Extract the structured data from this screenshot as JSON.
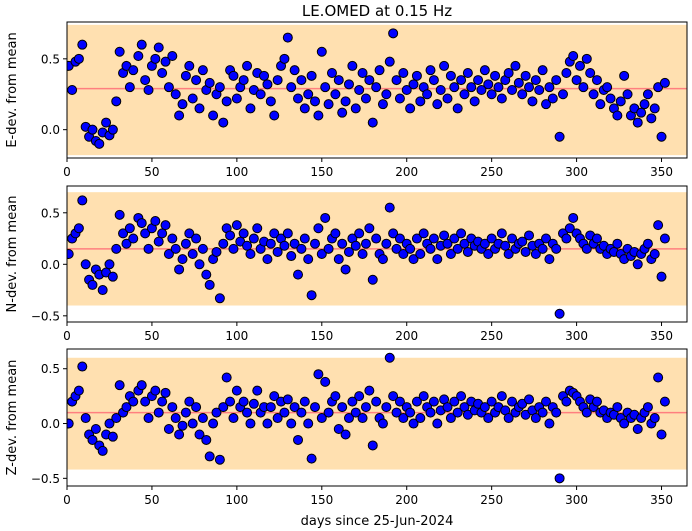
{
  "title": "LE.OMED at 0.15 Hz",
  "xlabel": "days since 25-Jun-2024",
  "colors": {
    "band": "#ffe0b0",
    "mean_line": "#ff7f7f",
    "marker_fill": "#0000ff",
    "marker_edge": "#000000"
  },
  "chart_data": [
    {
      "type": "scatter",
      "ylabel": "E-dev. from mean",
      "xlim": [
        0,
        365
      ],
      "ylim": [
        -0.2,
        0.76
      ],
      "xticks": [
        0,
        50,
        100,
        150,
        200,
        250,
        300,
        350
      ],
      "yticks": [
        0.0,
        0.5
      ],
      "ytick_labels": [
        "0.0",
        "0.5"
      ],
      "band": [
        -0.18,
        0.74
      ],
      "mean": 0.29,
      "x": [
        1,
        3,
        5,
        7,
        9,
        11,
        13,
        15,
        17,
        19,
        21,
        23,
        25,
        27,
        29,
        31,
        33,
        35,
        37,
        39,
        42,
        44,
        46,
        48,
        50,
        52,
        54,
        56,
        58,
        60,
        62,
        64,
        66,
        68,
        70,
        72,
        74,
        76,
        78,
        80,
        82,
        84,
        86,
        88,
        90,
        92,
        94,
        96,
        98,
        100,
        102,
        104,
        106,
        108,
        110,
        112,
        114,
        116,
        118,
        120,
        122,
        124,
        126,
        128,
        130,
        132,
        134,
        136,
        138,
        140,
        142,
        144,
        146,
        148,
        150,
        152,
        154,
        156,
        158,
        160,
        162,
        164,
        166,
        168,
        170,
        172,
        174,
        176,
        178,
        180,
        182,
        184,
        186,
        188,
        190,
        192,
        194,
        196,
        198,
        200,
        202,
        204,
        206,
        208,
        210,
        212,
        214,
        216,
        218,
        220,
        222,
        224,
        226,
        228,
        230,
        232,
        234,
        236,
        238,
        240,
        242,
        244,
        246,
        248,
        250,
        252,
        254,
        256,
        258,
        260,
        262,
        264,
        266,
        268,
        270,
        272,
        274,
        276,
        278,
        280,
        282,
        284,
        286,
        288,
        290,
        292,
        294,
        296,
        298,
        300,
        302,
        304,
        306,
        308,
        310,
        312,
        314,
        316,
        318,
        320,
        322,
        324,
        326,
        328,
        330,
        332,
        334,
        336,
        338,
        340,
        342,
        344,
        346,
        348,
        350,
        352
      ],
      "y": [
        0.45,
        0.28,
        0.48,
        0.5,
        0.6,
        0.02,
        -0.05,
        0.0,
        -0.08,
        -0.1,
        -0.02,
        0.05,
        -0.04,
        0.0,
        0.2,
        0.55,
        0.4,
        0.45,
        0.3,
        0.42,
        0.52,
        0.6,
        0.35,
        0.28,
        0.45,
        0.5,
        0.58,
        0.4,
        0.48,
        0.3,
        0.52,
        0.25,
        0.1,
        0.18,
        0.38,
        0.45,
        0.22,
        0.35,
        0.15,
        0.42,
        0.28,
        0.33,
        0.1,
        0.25,
        0.3,
        0.05,
        0.2,
        0.42,
        0.38,
        0.22,
        0.3,
        0.35,
        0.45,
        0.15,
        0.28,
        0.4,
        0.25,
        0.38,
        0.32,
        0.2,
        0.1,
        0.35,
        0.45,
        0.5,
        0.65,
        0.3,
        0.42,
        0.22,
        0.35,
        0.15,
        0.25,
        0.38,
        0.2,
        0.1,
        0.55,
        0.3,
        0.18,
        0.4,
        0.25,
        0.35,
        0.12,
        0.2,
        0.32,
        0.45,
        0.15,
        0.28,
        0.4,
        0.22,
        0.35,
        0.05,
        0.3,
        0.42,
        0.18,
        0.25,
        0.48,
        0.68,
        0.35,
        0.22,
        0.4,
        0.28,
        0.15,
        0.32,
        0.38,
        0.2,
        0.3,
        0.25,
        0.42,
        0.35,
        0.18,
        0.28,
        0.45,
        0.22,
        0.38,
        0.3,
        0.15,
        0.35,
        0.25,
        0.4,
        0.3,
        0.2,
        0.35,
        0.28,
        0.42,
        0.32,
        0.25,
        0.38,
        0.3,
        0.22,
        0.35,
        0.4,
        0.28,
        0.45,
        0.33,
        0.25,
        0.38,
        0.3,
        0.2,
        0.35,
        0.28,
        0.42,
        0.18,
        0.3,
        0.22,
        0.35,
        -0.05,
        0.25,
        0.4,
        0.48,
        0.52,
        0.35,
        0.45,
        0.3,
        0.5,
        0.4,
        0.25,
        0.35,
        0.18,
        0.28,
        0.3,
        0.22,
        0.15,
        0.1,
        0.2,
        0.38,
        0.25,
        0.1,
        0.15,
        0.05,
        0.12,
        0.18,
        0.25,
        0.08,
        0.15,
        0.3,
        -0.05,
        0.33
      ]
    },
    {
      "type": "scatter",
      "ylabel": "N-dev. from mean",
      "xlim": [
        0,
        365
      ],
      "ylim": [
        -0.56,
        0.76
      ],
      "xticks": [
        0,
        50,
        100,
        150,
        200,
        250,
        300,
        350
      ],
      "yticks": [
        -0.5,
        0.0,
        0.5
      ],
      "ytick_labels": [
        "−0.5",
        "0.0",
        "0.5"
      ],
      "band": [
        -0.4,
        0.7
      ],
      "mean": 0.15,
      "x": [
        1,
        3,
        5,
        7,
        9,
        11,
        13,
        15,
        17,
        19,
        21,
        23,
        25,
        27,
        29,
        31,
        33,
        35,
        37,
        39,
        42,
        44,
        46,
        48,
        50,
        52,
        54,
        56,
        58,
        60,
        62,
        64,
        66,
        68,
        70,
        72,
        74,
        76,
        78,
        80,
        82,
        84,
        86,
        88,
        90,
        92,
        94,
        96,
        98,
        100,
        102,
        104,
        106,
        108,
        110,
        112,
        114,
        116,
        118,
        120,
        122,
        124,
        126,
        128,
        130,
        132,
        134,
        136,
        138,
        140,
        142,
        144,
        146,
        148,
        150,
        152,
        154,
        156,
        158,
        160,
        162,
        164,
        166,
        168,
        170,
        172,
        174,
        176,
        178,
        180,
        182,
        184,
        186,
        188,
        190,
        192,
        194,
        196,
        198,
        200,
        202,
        204,
        206,
        208,
        210,
        212,
        214,
        216,
        218,
        220,
        222,
        224,
        226,
        228,
        230,
        232,
        234,
        236,
        238,
        240,
        242,
        244,
        246,
        248,
        250,
        252,
        254,
        256,
        258,
        260,
        262,
        264,
        266,
        268,
        270,
        272,
        274,
        276,
        278,
        280,
        282,
        284,
        286,
        288,
        290,
        292,
        294,
        296,
        298,
        300,
        302,
        304,
        306,
        308,
        310,
        312,
        314,
        316,
        318,
        320,
        322,
        324,
        326,
        328,
        330,
        332,
        334,
        336,
        338,
        340,
        342,
        344,
        346,
        348,
        350,
        352
      ],
      "y": [
        0.1,
        0.25,
        0.3,
        0.35,
        0.62,
        0.0,
        -0.15,
        -0.2,
        -0.05,
        -0.1,
        -0.25,
        -0.08,
        0.0,
        -0.12,
        0.15,
        0.48,
        0.3,
        0.2,
        0.35,
        0.25,
        0.45,
        0.4,
        0.3,
        0.15,
        0.35,
        0.42,
        0.22,
        0.3,
        0.38,
        0.1,
        0.25,
        0.15,
        -0.05,
        0.05,
        0.2,
        0.3,
        0.1,
        0.25,
        0.0,
        0.15,
        -0.1,
        -0.2,
        0.05,
        0.12,
        -0.33,
        0.2,
        0.35,
        0.28,
        0.15,
        0.38,
        0.22,
        0.3,
        0.18,
        0.1,
        0.25,
        0.35,
        0.15,
        0.22,
        0.05,
        0.2,
        0.3,
        0.12,
        0.25,
        0.18,
        0.3,
        0.08,
        0.2,
        -0.1,
        0.15,
        0.25,
        0.05,
        -0.3,
        0.2,
        0.35,
        0.1,
        0.45,
        0.15,
        0.25,
        0.3,
        0.05,
        0.2,
        -0.05,
        0.12,
        0.25,
        0.18,
        0.3,
        0.1,
        0.2,
        0.35,
        -0.15,
        0.25,
        0.1,
        0.05,
        0.2,
        0.55,
        0.3,
        0.15,
        0.25,
        0.1,
        0.2,
        0.15,
        0.05,
        0.25,
        0.1,
        0.3,
        0.2,
        0.15,
        0.25,
        0.05,
        0.18,
        0.28,
        0.2,
        0.1,
        0.25,
        0.15,
        0.3,
        0.2,
        0.12,
        0.25,
        0.18,
        0.22,
        0.15,
        0.2,
        0.1,
        0.25,
        0.15,
        0.2,
        0.3,
        0.18,
        0.1,
        0.25,
        0.15,
        0.2,
        0.22,
        0.12,
        0.28,
        0.18,
        0.1,
        0.2,
        0.15,
        0.25,
        0.05,
        0.2,
        0.15,
        -0.48,
        0.3,
        0.25,
        0.35,
        0.45,
        0.3,
        0.25,
        0.2,
        0.15,
        0.28,
        0.2,
        0.25,
        0.15,
        0.18,
        0.1,
        0.15,
        0.12,
        0.2,
        0.1,
        0.05,
        0.15,
        0.08,
        0.12,
        0.0,
        0.1,
        0.15,
        0.2,
        0.05,
        0.1,
        0.38,
        -0.12,
        0.25
      ]
    },
    {
      "type": "scatter",
      "ylabel": "Z-dev. from mean",
      "xlim": [
        0,
        365
      ],
      "ylim": [
        -0.57,
        0.68
      ],
      "xticks": [
        0,
        50,
        100,
        150,
        200,
        250,
        300,
        350
      ],
      "yticks": [
        -0.5,
        0.0,
        0.5
      ],
      "ytick_labels": [
        "−0.5",
        "0.0",
        "0.5"
      ],
      "band": [
        -0.42,
        0.6
      ],
      "mean": 0.1,
      "x": [
        1,
        3,
        5,
        7,
        9,
        11,
        13,
        15,
        17,
        19,
        21,
        23,
        25,
        27,
        29,
        31,
        33,
        35,
        37,
        39,
        42,
        44,
        46,
        48,
        50,
        52,
        54,
        56,
        58,
        60,
        62,
        64,
        66,
        68,
        70,
        72,
        74,
        76,
        78,
        80,
        82,
        84,
        86,
        88,
        90,
        92,
        94,
        96,
        98,
        100,
        102,
        104,
        106,
        108,
        110,
        112,
        114,
        116,
        118,
        120,
        122,
        124,
        126,
        128,
        130,
        132,
        134,
        136,
        138,
        140,
        142,
        144,
        146,
        148,
        150,
        152,
        154,
        156,
        158,
        160,
        162,
        164,
        166,
        168,
        170,
        172,
        174,
        176,
        178,
        180,
        182,
        184,
        186,
        188,
        190,
        192,
        194,
        196,
        198,
        200,
        202,
        204,
        206,
        208,
        210,
        212,
        214,
        216,
        218,
        220,
        222,
        224,
        226,
        228,
        230,
        232,
        234,
        236,
        238,
        240,
        242,
        244,
        246,
        248,
        250,
        252,
        254,
        256,
        258,
        260,
        262,
        264,
        266,
        268,
        270,
        272,
        274,
        276,
        278,
        280,
        282,
        284,
        286,
        288,
        290,
        292,
        294,
        296,
        298,
        300,
        302,
        304,
        306,
        308,
        310,
        312,
        314,
        316,
        318,
        320,
        322,
        324,
        326,
        328,
        330,
        332,
        334,
        336,
        338,
        340,
        342,
        344,
        346,
        348,
        350,
        352
      ],
      "y": [
        0.0,
        0.2,
        0.25,
        0.3,
        0.52,
        0.05,
        -0.1,
        -0.15,
        -0.05,
        -0.2,
        -0.25,
        -0.1,
        0.0,
        -0.12,
        0.05,
        0.35,
        0.1,
        0.15,
        0.25,
        0.2,
        0.3,
        0.35,
        0.2,
        0.05,
        0.25,
        0.3,
        0.1,
        0.2,
        0.28,
        -0.05,
        0.15,
        0.05,
        -0.1,
        -0.02,
        0.1,
        0.2,
        0.0,
        0.15,
        -0.1,
        0.05,
        -0.15,
        -0.3,
        0.0,
        0.1,
        -0.33,
        0.15,
        0.42,
        0.2,
        0.05,
        0.3,
        0.15,
        0.2,
        0.1,
        0.0,
        0.18,
        0.3,
        0.1,
        0.15,
        0.0,
        0.15,
        0.25,
        0.05,
        0.2,
        0.1,
        0.22,
        0.0,
        0.15,
        -0.15,
        0.1,
        0.2,
        0.0,
        -0.32,
        0.15,
        0.45,
        0.05,
        0.38,
        0.1,
        0.2,
        0.25,
        -0.05,
        0.15,
        -0.1,
        0.05,
        0.2,
        0.1,
        0.25,
        0.05,
        0.15,
        0.3,
        -0.2,
        0.2,
        0.05,
        0.0,
        0.15,
        0.6,
        0.25,
        0.1,
        0.2,
        0.05,
        0.15,
        0.1,
        0.0,
        0.2,
        0.05,
        0.25,
        0.15,
        0.1,
        0.2,
        0.0,
        0.12,
        0.22,
        0.15,
        0.05,
        0.2,
        0.1,
        0.25,
        0.15,
        0.08,
        0.2,
        0.12,
        0.18,
        0.1,
        0.15,
        0.05,
        0.2,
        0.1,
        0.15,
        0.25,
        0.12,
        0.05,
        0.2,
        0.1,
        0.15,
        0.18,
        0.08,
        0.22,
        0.12,
        0.05,
        0.15,
        0.1,
        0.2,
        0.0,
        0.15,
        0.1,
        -0.5,
        0.25,
        0.2,
        0.3,
        0.28,
        0.25,
        0.2,
        0.15,
        0.1,
        0.22,
        0.15,
        0.2,
        0.1,
        0.12,
        0.05,
        0.1,
        0.08,
        0.15,
        0.05,
        0.0,
        0.1,
        0.05,
        0.08,
        -0.05,
        0.05,
        0.1,
        0.15,
        0.0,
        0.05,
        0.42,
        -0.1,
        0.2
      ]
    }
  ]
}
